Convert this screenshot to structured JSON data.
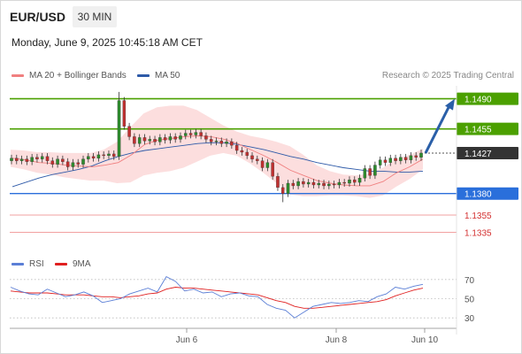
{
  "header": {
    "symbol": "EUR/USD",
    "timeframe": "30 MIN",
    "datetime": "Monday, June 9, 2025 10:45:18 AM CET",
    "credit": "Research © 2025 Trading Central"
  },
  "legend": {
    "ma20_label": "MA 20 + Bollinger Bands",
    "ma50_label": "MA 50",
    "rsi_label": "RSI",
    "ma9_label": "9MA"
  },
  "colors": {
    "resistance": "#4ba000",
    "current": "#333333",
    "support": "#2a6fdb",
    "extra_support": "#d32f2f",
    "ma20": "#f08080",
    "bands_fill": "#fbd3d3",
    "ma50": "#2e5aa8",
    "arrow": "#2a5fa8",
    "rsi": "#5b7fd6",
    "ma9": "#e02020"
  },
  "chart_data": [
    {
      "type": "candlestick",
      "title": "EUR/USD 30 MIN",
      "ylim": [
        1.1315,
        1.1505
      ],
      "x_ticks": [
        "Jun 6",
        "Jun 8",
        "Jun 10"
      ],
      "levels": [
        {
          "value": 1.149,
          "label": "1.1490",
          "kind": "resistance"
        },
        {
          "value": 1.1455,
          "label": "1.1455",
          "kind": "resistance"
        },
        {
          "value": 1.1427,
          "label": "1.1427",
          "kind": "current"
        },
        {
          "value": 1.138,
          "label": "1.1380",
          "kind": "support"
        },
        {
          "value": 1.1355,
          "label": "1.1355",
          "kind": "extra_support"
        },
        {
          "value": 1.1335,
          "label": "1.1335",
          "kind": "extra_support"
        }
      ],
      "series": [
        {
          "name": "MA 20 + Bollinger Bands",
          "values": [
            1.1421,
            1.1419,
            1.1416,
            1.1415,
            1.1413,
            1.1412,
            1.1411,
            1.1413,
            1.1416,
            1.1425,
            1.1437,
            1.1442,
            1.1444,
            1.1446,
            1.1447,
            1.1446,
            1.1443,
            1.1438,
            1.1431,
            1.1424,
            1.1416,
            1.1407,
            1.1401,
            1.1395,
            1.1392,
            1.139,
            1.1389,
            1.1389,
            1.1394,
            1.1404,
            1.1411,
            1.142
          ]
        },
        {
          "name": "MA 50",
          "values": [
            1.1388,
            1.1393,
            1.1398,
            1.1402,
            1.1405,
            1.1408,
            1.1412,
            1.1418,
            1.1423,
            1.1427,
            1.143,
            1.1432,
            1.1434,
            1.1436,
            1.1438,
            1.1439,
            1.1439,
            1.1437,
            1.1434,
            1.1431,
            1.1427,
            1.1423,
            1.142,
            1.1416,
            1.1413,
            1.141,
            1.1408,
            1.1406,
            1.1406,
            1.1405,
            1.1405,
            1.1406
          ]
        }
      ],
      "closes": [
        1.1421,
        1.1418,
        1.142,
        1.1417,
        1.1422,
        1.142,
        1.1423,
        1.1418,
        1.1414,
        1.142,
        1.1417,
        1.1411,
        1.1416,
        1.1414,
        1.142,
        1.1423,
        1.1421,
        1.1425,
        1.1424,
        1.1426,
        1.1423,
        1.1488,
        1.1458,
        1.1446,
        1.1438,
        1.1445,
        1.1441,
        1.1443,
        1.144,
        1.1445,
        1.1442,
        1.1446,
        1.1443,
        1.1447,
        1.145,
        1.1448,
        1.1451,
        1.1447,
        1.1443,
        1.144,
        1.1441,
        1.1438,
        1.144,
        1.1436,
        1.143,
        1.1428,
        1.1424,
        1.142,
        1.1418,
        1.141,
        1.1416,
        1.14,
        1.1387,
        1.138,
        1.1392,
        1.1389,
        1.1394,
        1.1391,
        1.1393,
        1.139,
        1.1392,
        1.1389,
        1.1391,
        1.139,
        1.1393,
        1.1392,
        1.1396,
        1.1393,
        1.1398,
        1.1409,
        1.1401,
        1.1413,
        1.1419,
        1.1416,
        1.1421,
        1.1418,
        1.1422,
        1.1419,
        1.1424,
        1.1422,
        1.1427
      ]
    },
    {
      "type": "line",
      "title": "RSI",
      "ylim": [
        20,
        80
      ],
      "y_ticks": [
        70,
        50,
        30
      ],
      "series": [
        {
          "name": "RSI",
          "values": [
            62,
            58,
            55,
            54,
            60,
            56,
            52,
            54,
            57,
            53,
            46,
            48,
            50,
            55,
            58,
            61,
            57,
            73,
            68,
            58,
            60,
            56,
            57,
            52,
            55,
            56,
            53,
            52,
            44,
            40,
            38,
            30,
            36,
            42,
            44,
            46,
            45,
            46,
            48,
            47,
            52,
            55,
            62,
            60,
            63,
            65
          ]
        },
        {
          "name": "9MA",
          "values": [
            58,
            57,
            56,
            56,
            56,
            55,
            54,
            54,
            54,
            53,
            52,
            52,
            51,
            52,
            53,
            55,
            56,
            60,
            62,
            61,
            61,
            60,
            59,
            58,
            57,
            56,
            55,
            54,
            51,
            48,
            46,
            42,
            40,
            40,
            41,
            42,
            43,
            44,
            45,
            46,
            47,
            49,
            53,
            56,
            59,
            61
          ]
        }
      ]
    }
  ]
}
